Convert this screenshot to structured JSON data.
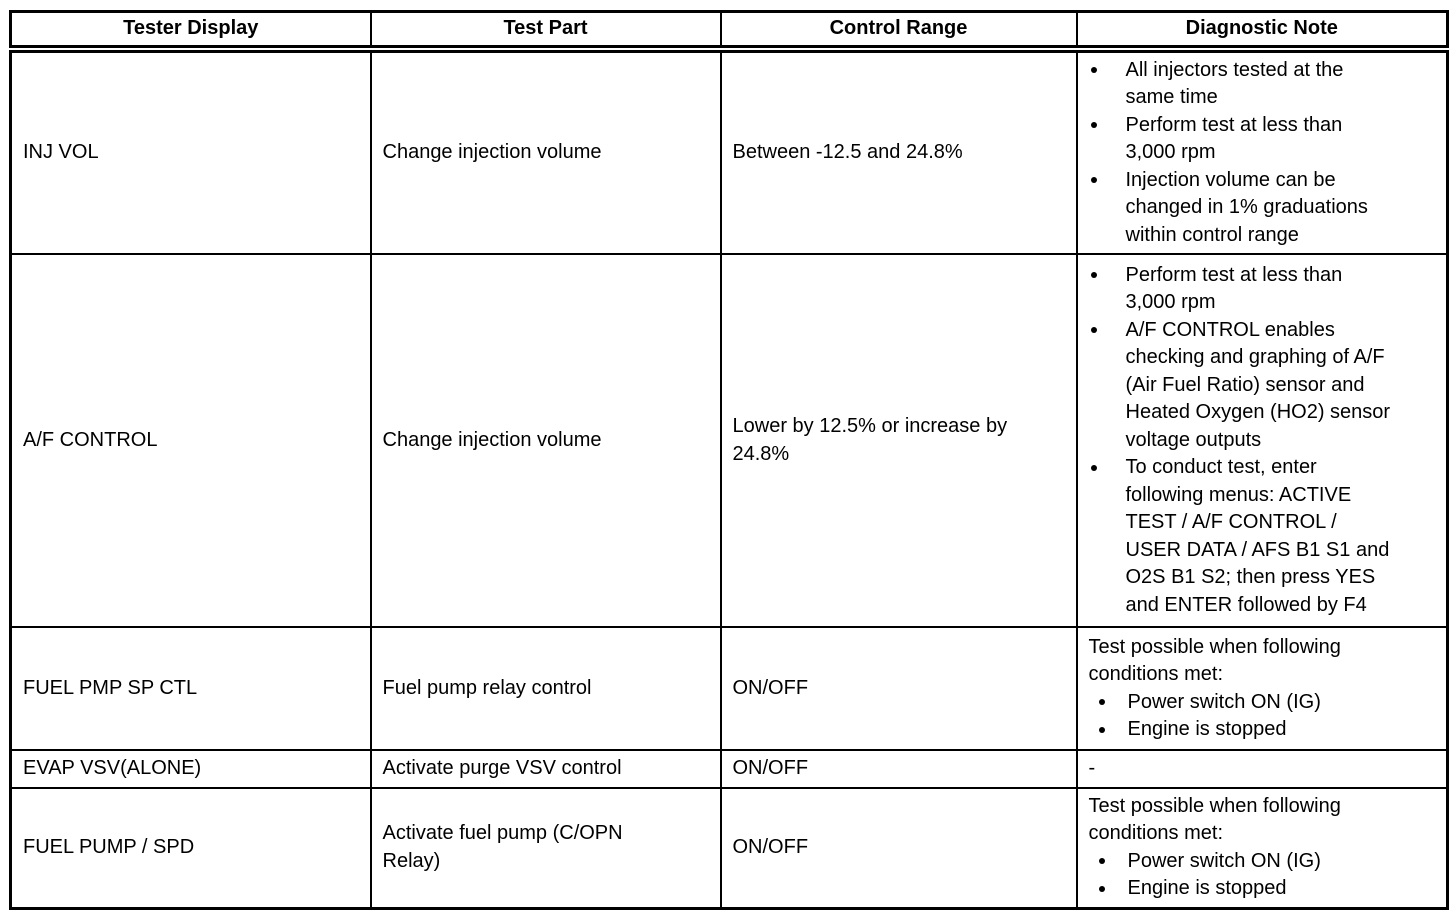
{
  "table": {
    "headers": [
      "Tester Display",
      "Test Part",
      "Control Range",
      "Diagnostic Note"
    ],
    "rows": [
      {
        "tester_display": "INJ VOL",
        "test_part": "Change injection volume",
        "control_range": "Between -12.5 and 24.8%",
        "note_bullets": [
          "All injectors tested at the\nsame time",
          "Perform test at less than\n3,000 rpm",
          "Injection volume can be\nchanged in 1% graduations\nwithin control range"
        ]
      },
      {
        "tester_display": "A/F CONTROL",
        "test_part": "Change injection volume",
        "control_range": "Lower by 12.5% or increase by\n24.8%",
        "note_bullets": [
          "Perform test at less than\n3,000 rpm",
          "A/F CONTROL enables\nchecking and graphing of A/F\n(Air Fuel Ratio) sensor and\nHeated Oxygen (HO2) sensor\nvoltage outputs",
          "To conduct test, enter\nfollowing menus: ACTIVE\nTEST / A/F CONTROL /\nUSER DATA / AFS B1 S1 and\nO2S B1 S2; then press YES\nand ENTER followed by F4"
        ]
      },
      {
        "tester_display": "FUEL PMP SP CTL",
        "test_part": "Fuel pump relay control",
        "control_range": "ON/OFF",
        "note_intro": "Test possible when following\nconditions met:",
        "note_bullets": [
          "Power switch ON (IG)",
          "Engine is stopped"
        ]
      },
      {
        "tester_display": "EVAP VSV(ALONE)",
        "test_part": "Activate purge VSV control",
        "control_range": "ON/OFF",
        "note_text": "-"
      },
      {
        "tester_display": "FUEL PUMP / SPD",
        "test_part": "Activate fuel pump (C/OPN\nRelay)",
        "control_range": "ON/OFF",
        "note_intro": "Test possible when following\nconditions met:",
        "note_bullets": [
          "Power switch ON (IG)",
          "Engine is stopped"
        ]
      }
    ]
  }
}
